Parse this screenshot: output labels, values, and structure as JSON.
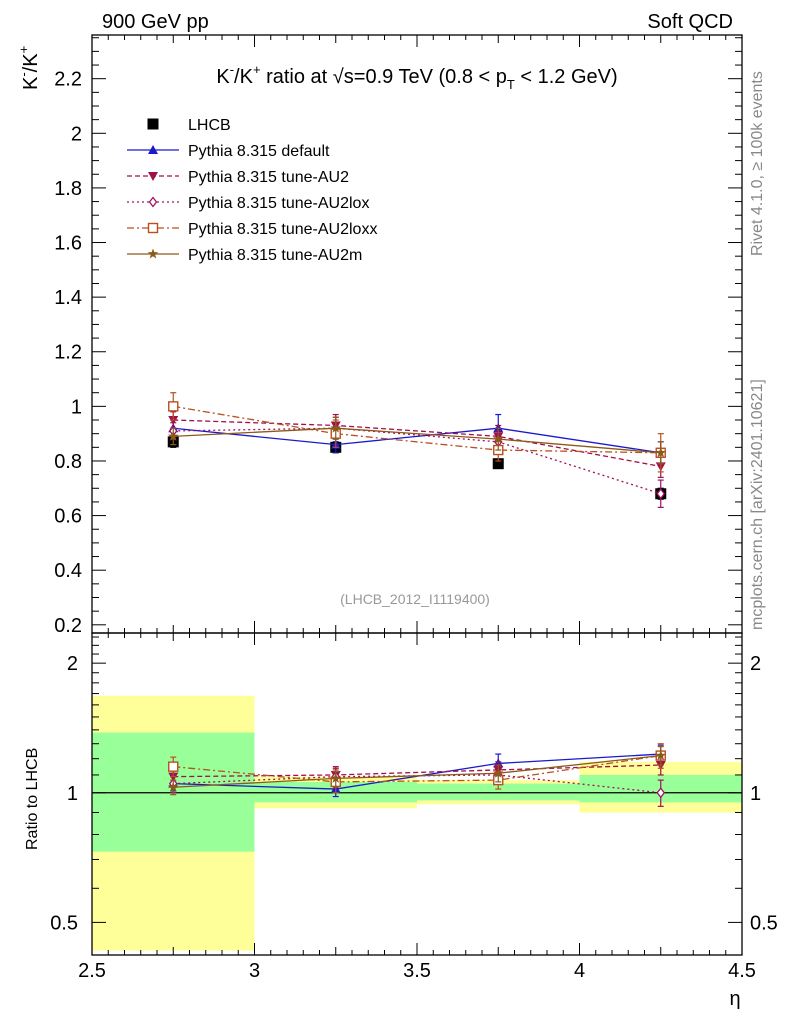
{
  "header": {
    "left": "900 GeV pp",
    "right": "Soft QCD"
  },
  "side_labels": {
    "rivet": "Rivet 4.1.0, ≥ 100k events",
    "mcplots": "mcplots.cern.ch [arXiv:2401.10621]"
  },
  "chart_data": [
    {
      "type": "line",
      "panel": "main",
      "title_parts": {
        "k": "K",
        "minus": "-",
        "slash": "/K",
        "plus": "+",
        "ratio_at": " ratio at ",
        "sqrt": "√s",
        "energy": "=0.9 TeV (0.8 < p",
        "sub": "T",
        "pt_range": " < 1.2 GeV)"
      },
      "ylabel_parts": {
        "k": "K",
        "minus": "-",
        "slash": "/K",
        "plus": "+"
      },
      "analysis_id": "(LHCB_2012_I1119400)",
      "xlim": [
        2.5,
        4.5
      ],
      "ylim": [
        0.17,
        2.36
      ],
      "yticks": [
        0.2,
        0.4,
        0.6,
        0.8,
        1,
        1.2,
        1.4,
        1.6,
        1.8,
        2,
        2.2
      ],
      "ytick_labels": [
        "0.2",
        "0.4",
        "0.6",
        "0.8",
        "1",
        "1.2",
        "1.4",
        "1.6",
        "1.8",
        "2",
        "2.2"
      ],
      "x": [
        2.75,
        3.25,
        3.75,
        4.25
      ],
      "series": [
        {
          "name": "LHCB",
          "color": "#000000",
          "marker": "square-filled",
          "style": "points",
          "values": [
            0.87,
            0.85,
            0.79,
            0.68
          ],
          "errors": [
            0.02,
            0.02,
            0.01,
            0.02
          ]
        },
        {
          "name": "Pythia 8.315 default",
          "color": "#1a1acc",
          "marker": "triangle-up",
          "style": "solid",
          "values": [
            0.92,
            0.86,
            0.92,
            0.83
          ],
          "errors": [
            0.03,
            0.03,
            0.05,
            0.04
          ]
        },
        {
          "name": "Pythia 8.315 tune-AU2",
          "color": "#a0104a",
          "marker": "triangle-down",
          "style": "dashed",
          "values": [
            0.95,
            0.93,
            0.89,
            0.78
          ],
          "errors": [
            0.03,
            0.04,
            0.04,
            0.04
          ]
        },
        {
          "name": "Pythia 8.315 tune-AU2lox",
          "color": "#a01060",
          "marker": "diamond-open",
          "style": "dotted",
          "values": [
            0.91,
            0.92,
            0.87,
            0.68
          ],
          "errors": [
            0.03,
            0.04,
            0.04,
            0.05
          ]
        },
        {
          "name": "Pythia 8.315 tune-AU2loxx",
          "color": "#b85020",
          "marker": "square-open",
          "style": "dashdot",
          "values": [
            1.0,
            0.9,
            0.84,
            0.83
          ],
          "errors": [
            0.05,
            0.05,
            0.04,
            0.07
          ]
        },
        {
          "name": "Pythia 8.315 tune-AU2m",
          "color": "#8b5a1a",
          "marker": "star",
          "style": "solid",
          "values": [
            0.89,
            0.92,
            0.88,
            0.83
          ],
          "errors": [
            0.03,
            0.04,
            0.04,
            0.04
          ]
        }
      ]
    },
    {
      "type": "line",
      "panel": "ratio",
      "ylabel": "Ratio to LHCB",
      "xlabel": "η",
      "xlim": [
        2.5,
        4.5
      ],
      "ylim": [
        0.42,
        2.35
      ],
      "ylog": true,
      "xticks": [
        2.5,
        3,
        3.5,
        4,
        4.5
      ],
      "xtick_labels": [
        "2.5",
        "3",
        "3.5",
        "4",
        "4.5"
      ],
      "yticks": [
        0.5,
        1,
        2
      ],
      "ytick_labels": [
        "0.5",
        "1",
        "2"
      ],
      "bands": [
        {
          "x": [
            2.5,
            3.0
          ],
          "yellow": [
            0.43,
            1.68
          ],
          "green": [
            0.73,
            1.38
          ]
        },
        {
          "x": [
            3.0,
            3.5
          ],
          "yellow": [
            0.92,
            1.09
          ],
          "green": [
            0.95,
            1.06
          ]
        },
        {
          "x": [
            3.5,
            4.0
          ],
          "yellow": [
            0.94,
            1.07
          ],
          "green": [
            0.96,
            1.05
          ]
        },
        {
          "x": [
            4.0,
            4.5
          ],
          "yellow": [
            0.9,
            1.18
          ],
          "green": [
            0.95,
            1.1
          ]
        }
      ],
      "x": [
        2.75,
        3.25,
        3.75,
        4.25
      ],
      "series": [
        {
          "name": "Pythia 8.315 default",
          "color": "#1a1acc",
          "marker": "triangle-up",
          "style": "solid",
          "values": [
            1.05,
            1.02,
            1.17,
            1.23
          ],
          "errors": [
            0.04,
            0.04,
            0.06,
            0.06
          ]
        },
        {
          "name": "Pythia 8.315 tune-AU2",
          "color": "#a0104a",
          "marker": "triangle-down",
          "style": "dashed",
          "values": [
            1.09,
            1.1,
            1.13,
            1.16
          ],
          "errors": [
            0.05,
            0.05,
            0.05,
            0.06
          ]
        },
        {
          "name": "Pythia 8.315 tune-AU2lox",
          "color": "#a01060",
          "marker": "diamond-open",
          "style": "dotted",
          "values": [
            1.05,
            1.09,
            1.1,
            1.0
          ],
          "errors": [
            0.05,
            0.05,
            0.05,
            0.07
          ]
        },
        {
          "name": "Pythia 8.315 tune-AU2loxx",
          "color": "#b85020",
          "marker": "square-open",
          "style": "dashdot",
          "values": [
            1.15,
            1.06,
            1.07,
            1.22
          ],
          "errors": [
            0.06,
            0.06,
            0.05,
            0.08
          ]
        },
        {
          "name": "Pythia 8.315 tune-AU2m",
          "color": "#8b5a1a",
          "marker": "star",
          "style": "solid",
          "values": [
            1.03,
            1.08,
            1.11,
            1.22
          ],
          "errors": [
            0.04,
            0.05,
            0.05,
            0.06
          ]
        }
      ]
    }
  ]
}
